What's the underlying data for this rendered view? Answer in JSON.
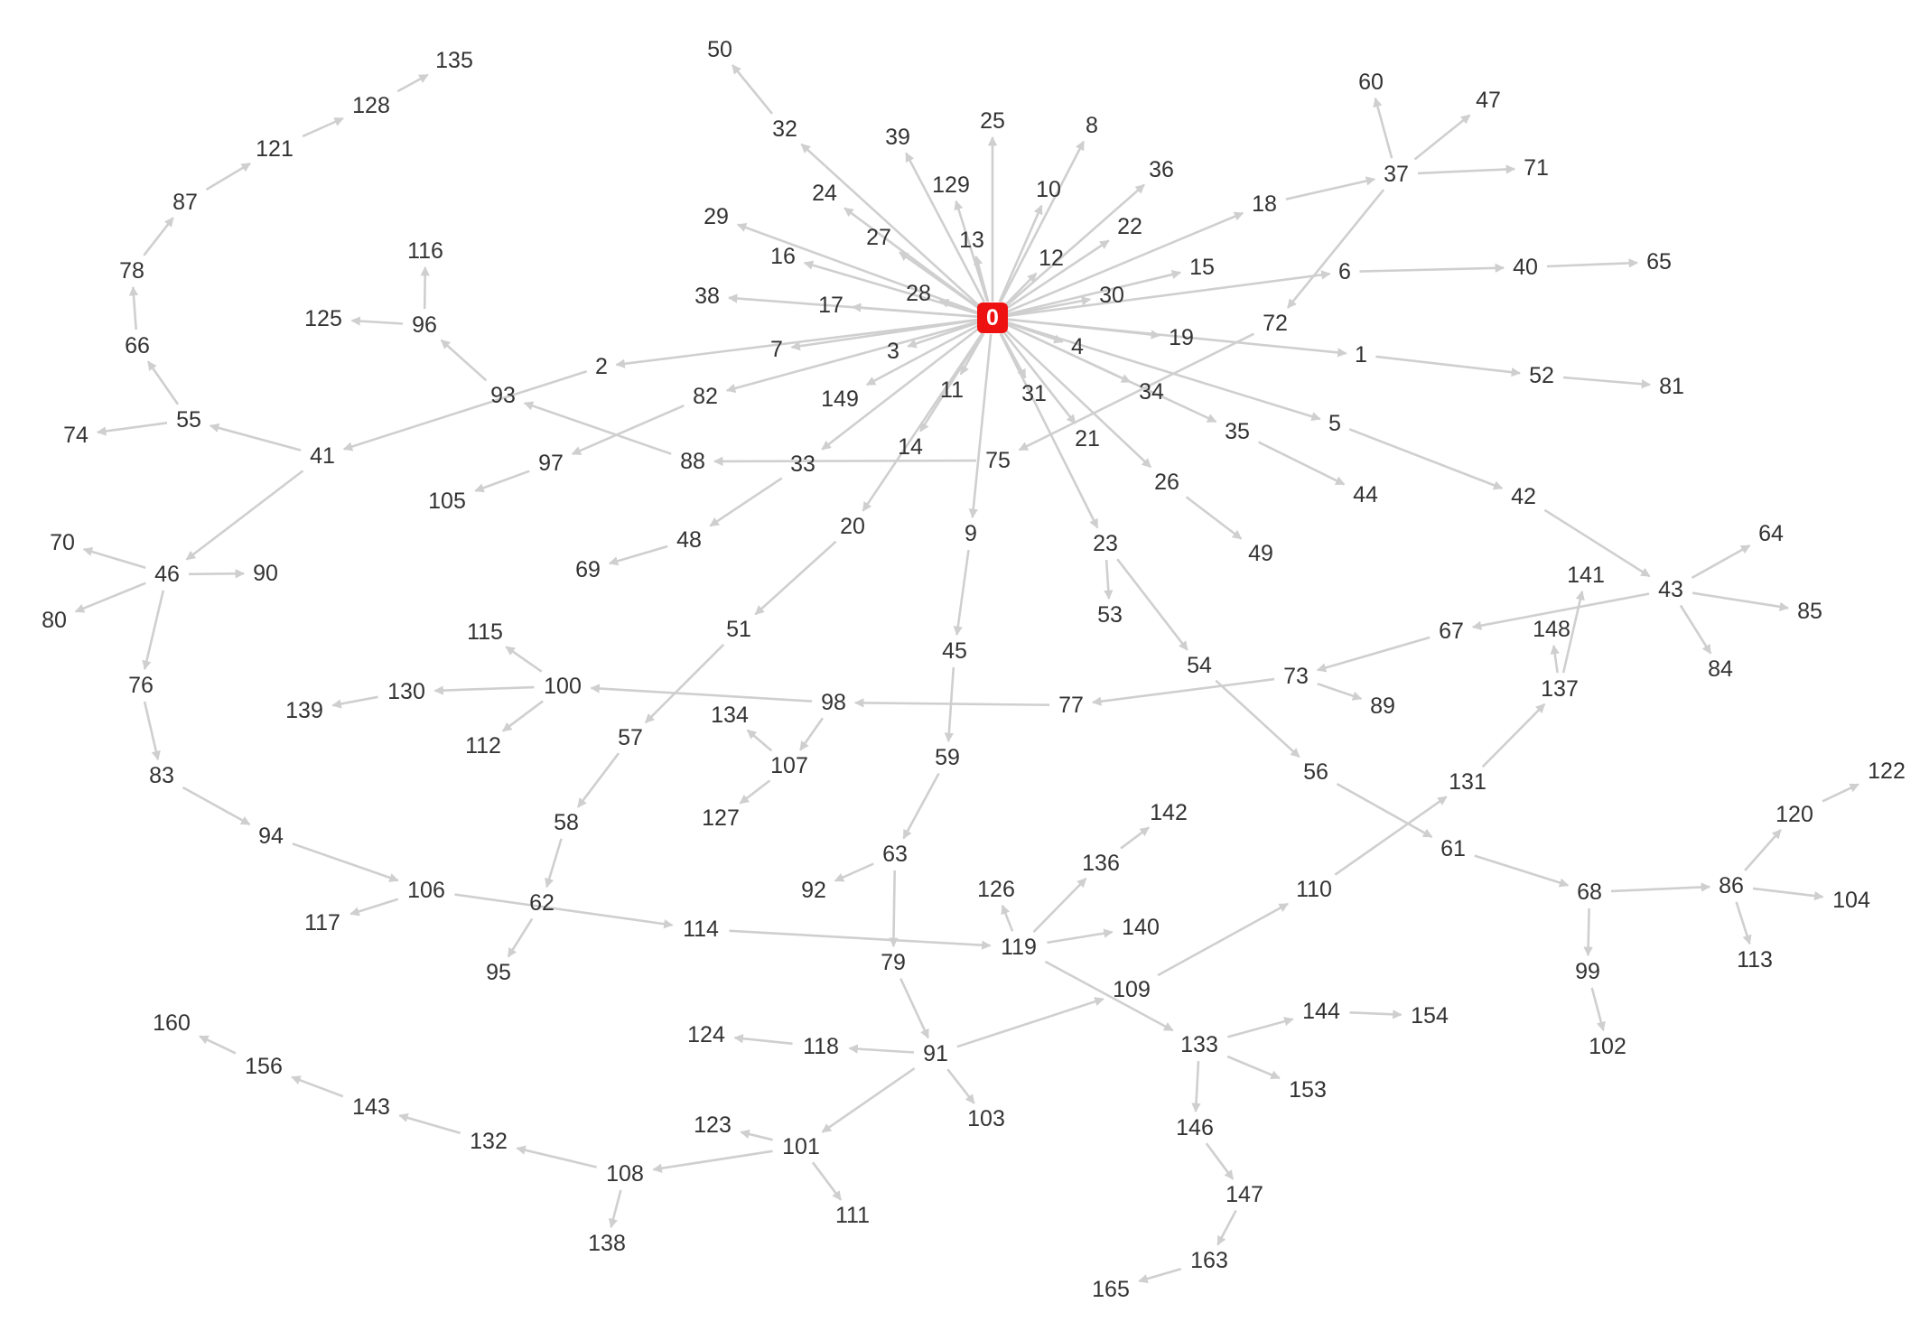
{
  "graph": {
    "root": "0",
    "colors": {
      "edge": "#cfcfcf",
      "label": "#333333",
      "root_fill": "#ee1111",
      "root_text": "#ffffff"
    },
    "edges": [
      [
        "0",
        "25"
      ],
      [
        "0",
        "8"
      ],
      [
        "0",
        "10"
      ],
      [
        "0",
        "36"
      ],
      [
        "0",
        "22"
      ],
      [
        "0",
        "12"
      ],
      [
        "0",
        "15"
      ],
      [
        "0",
        "30"
      ],
      [
        "0",
        "18"
      ],
      [
        "0",
        "6"
      ],
      [
        "0",
        "19"
      ],
      [
        "0",
        "1"
      ],
      [
        "0",
        "4"
      ],
      [
        "0",
        "34"
      ],
      [
        "0",
        "35"
      ],
      [
        "0",
        "5"
      ],
      [
        "0",
        "31"
      ],
      [
        "0",
        "21"
      ],
      [
        "0",
        "23"
      ],
      [
        "0",
        "26"
      ],
      [
        "0",
        "9"
      ],
      [
        "0",
        "14"
      ],
      [
        "0",
        "20"
      ],
      [
        "0",
        "11"
      ],
      [
        "0",
        "33"
      ],
      [
        "0",
        "3"
      ],
      [
        "0",
        "149"
      ],
      [
        "0",
        "82"
      ],
      [
        "0",
        "7"
      ],
      [
        "0",
        "2"
      ],
      [
        "0",
        "17"
      ],
      [
        "0",
        "38"
      ],
      [
        "0",
        "28"
      ],
      [
        "0",
        "16"
      ],
      [
        "0",
        "29"
      ],
      [
        "0",
        "27"
      ],
      [
        "0",
        "24"
      ],
      [
        "0",
        "32"
      ],
      [
        "0",
        "13"
      ],
      [
        "0",
        "129"
      ],
      [
        "0",
        "39"
      ],
      [
        "32",
        "50"
      ],
      [
        "18",
        "37"
      ],
      [
        "37",
        "60"
      ],
      [
        "37",
        "47"
      ],
      [
        "37",
        "71"
      ],
      [
        "37",
        "72"
      ],
      [
        "72",
        "75"
      ],
      [
        "6",
        "40"
      ],
      [
        "40",
        "65"
      ],
      [
        "1",
        "52"
      ],
      [
        "52",
        "81"
      ],
      [
        "35",
        "44"
      ],
      [
        "5",
        "42"
      ],
      [
        "42",
        "43"
      ],
      [
        "43",
        "64"
      ],
      [
        "43",
        "85"
      ],
      [
        "43",
        "84"
      ],
      [
        "43",
        "67"
      ],
      [
        "67",
        "73"
      ],
      [
        "73",
        "89"
      ],
      [
        "73",
        "77"
      ],
      [
        "77",
        "98"
      ],
      [
        "98",
        "100"
      ],
      [
        "98",
        "107"
      ],
      [
        "107",
        "134"
      ],
      [
        "107",
        "127"
      ],
      [
        "100",
        "115"
      ],
      [
        "100",
        "130"
      ],
      [
        "100",
        "112"
      ],
      [
        "130",
        "139"
      ],
      [
        "26",
        "49"
      ],
      [
        "23",
        "53"
      ],
      [
        "23",
        "54"
      ],
      [
        "54",
        "56"
      ],
      [
        "56",
        "61"
      ],
      [
        "61",
        "68"
      ],
      [
        "68",
        "86"
      ],
      [
        "68",
        "99"
      ],
      [
        "99",
        "102"
      ],
      [
        "86",
        "120"
      ],
      [
        "120",
        "122"
      ],
      [
        "86",
        "104"
      ],
      [
        "86",
        "113"
      ],
      [
        "75",
        "88"
      ],
      [
        "88",
        "93"
      ],
      [
        "82",
        "97"
      ],
      [
        "97",
        "105"
      ],
      [
        "2",
        "41"
      ],
      [
        "41",
        "55"
      ],
      [
        "41",
        "46"
      ],
      [
        "55",
        "74"
      ],
      [
        "55",
        "66"
      ],
      [
        "66",
        "78"
      ],
      [
        "78",
        "87"
      ],
      [
        "87",
        "121"
      ],
      [
        "121",
        "128"
      ],
      [
        "128",
        "135"
      ],
      [
        "93",
        "96"
      ],
      [
        "96",
        "116"
      ],
      [
        "96",
        "125"
      ],
      [
        "46",
        "70"
      ],
      [
        "46",
        "90"
      ],
      [
        "46",
        "80"
      ],
      [
        "46",
        "76"
      ],
      [
        "76",
        "83"
      ],
      [
        "83",
        "94"
      ],
      [
        "94",
        "106"
      ],
      [
        "106",
        "117"
      ],
      [
        "106",
        "114"
      ],
      [
        "114",
        "119"
      ],
      [
        "119",
        "126"
      ],
      [
        "119",
        "136"
      ],
      [
        "136",
        "142"
      ],
      [
        "119",
        "140"
      ],
      [
        "119",
        "133"
      ],
      [
        "133",
        "144"
      ],
      [
        "144",
        "154"
      ],
      [
        "133",
        "153"
      ],
      [
        "133",
        "146"
      ],
      [
        "146",
        "147"
      ],
      [
        "147",
        "163"
      ],
      [
        "163",
        "165"
      ],
      [
        "33",
        "48"
      ],
      [
        "48",
        "69"
      ],
      [
        "20",
        "51"
      ],
      [
        "51",
        "57"
      ],
      [
        "57",
        "58"
      ],
      [
        "58",
        "62"
      ],
      [
        "62",
        "95"
      ],
      [
        "9",
        "45"
      ],
      [
        "45",
        "59"
      ],
      [
        "59",
        "63"
      ],
      [
        "63",
        "92"
      ],
      [
        "63",
        "79"
      ],
      [
        "79",
        "91"
      ],
      [
        "91",
        "118"
      ],
      [
        "118",
        "124"
      ],
      [
        "91",
        "103"
      ],
      [
        "91",
        "101"
      ],
      [
        "91",
        "109"
      ],
      [
        "109",
        "110"
      ],
      [
        "110",
        "131"
      ],
      [
        "131",
        "137"
      ],
      [
        "137",
        "148"
      ],
      [
        "137",
        "141"
      ],
      [
        "101",
        "123"
      ],
      [
        "101",
        "111"
      ],
      [
        "101",
        "108"
      ],
      [
        "108",
        "132"
      ],
      [
        "132",
        "143"
      ],
      [
        "143",
        "156"
      ],
      [
        "156",
        "160"
      ],
      [
        "108",
        "138"
      ]
    ]
  }
}
